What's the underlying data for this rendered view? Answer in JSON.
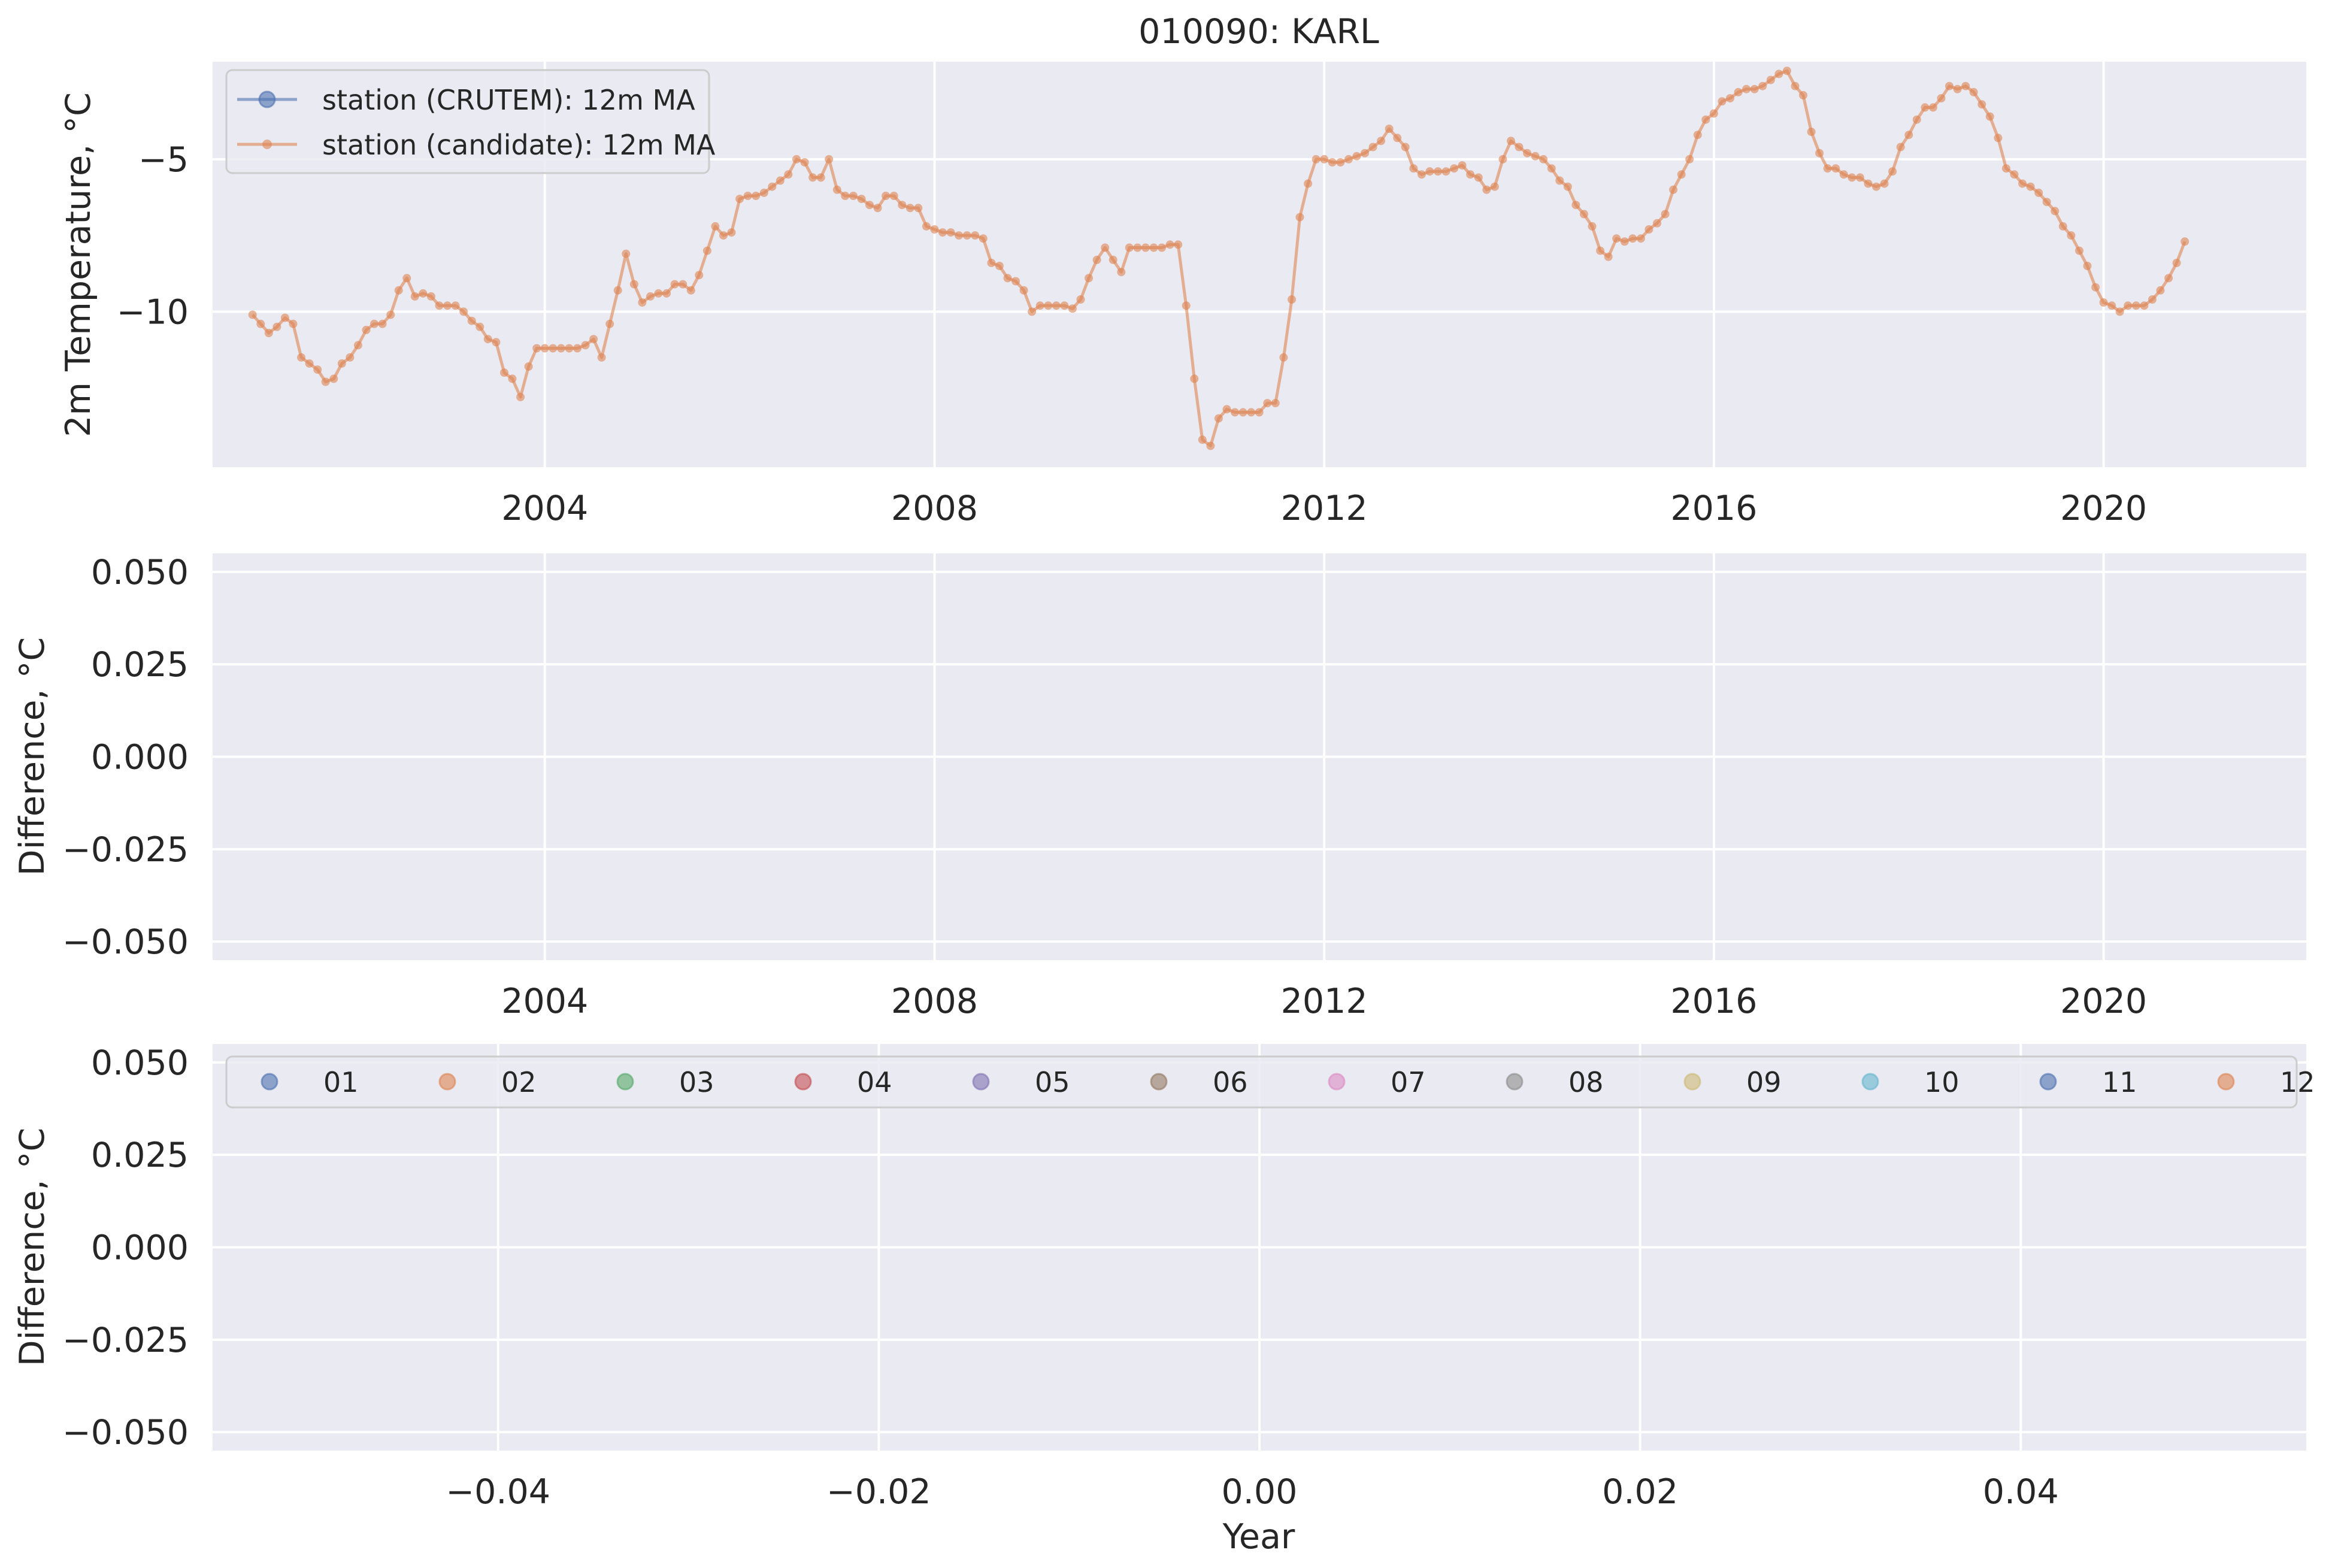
{
  "chart_data": [
    {
      "type": "line",
      "title": "010090: KARL",
      "xlabel": "",
      "ylabel": "2m Temperature, °C",
      "xlim": [
        2000.59,
        2022.08
      ],
      "ylim": [
        -15.1,
        -1.8
      ],
      "xticks": [
        2004,
        2008,
        2012,
        2016,
        2020
      ],
      "xtick_labels": [
        "2004",
        "2008",
        "2012",
        "2016",
        "2020"
      ],
      "yticks": [
        -5,
        -10
      ],
      "ytick_labels": [
        "−5",
        "−10"
      ],
      "grid": true,
      "legend_position": "upper-left",
      "series": [
        {
          "name": "station (CRUTEM): 12m MA",
          "color": "#4c72b0",
          "marker": "circle",
          "x": [],
          "y": []
        },
        {
          "name": "station (candidate): 12m MA",
          "color": "#dd8452",
          "marker": "circle-small",
          "x_start": 2001.0,
          "x_step": 0.0833333,
          "y": [
            -10.1,
            -10.4,
            -10.7,
            -10.5,
            -10.2,
            -10.4,
            -11.5,
            -11.7,
            -11.9,
            -12.3,
            -12.2,
            -11.7,
            -11.5,
            -11.1,
            -10.6,
            -10.4,
            -10.4,
            -10.1,
            -9.3,
            -8.9,
            -9.5,
            -9.4,
            -9.5,
            -9.8,
            -9.8,
            -9.8,
            -10.0,
            -10.3,
            -10.5,
            -10.9,
            -11.0,
            -12.0,
            -12.2,
            -12.8,
            -11.8,
            -11.2,
            -11.2,
            -11.2,
            -11.2,
            -11.2,
            -11.2,
            -11.1,
            -10.9,
            -11.5,
            -10.4,
            -9.3,
            -8.1,
            -9.1,
            -9.7,
            -9.5,
            -9.4,
            -9.4,
            -9.1,
            -9.1,
            -9.3,
            -8.8,
            -8.0,
            -7.2,
            -7.5,
            -7.4,
            -6.3,
            -6.2,
            -6.2,
            -6.1,
            -5.9,
            -5.7,
            -5.5,
            -5.0,
            -5.1,
            -5.6,
            -5.6,
            -5.0,
            -6.0,
            -6.2,
            -6.2,
            -6.3,
            -6.5,
            -6.6,
            -6.2,
            -6.2,
            -6.5,
            -6.6,
            -6.6,
            -7.2,
            -7.3,
            -7.4,
            -7.4,
            -7.5,
            -7.5,
            -7.5,
            -7.6,
            -8.4,
            -8.5,
            -8.9,
            -9.0,
            -9.3,
            -10.0,
            -9.8,
            -9.8,
            -9.8,
            -9.8,
            -9.9,
            -9.6,
            -8.9,
            -8.3,
            -7.9,
            -8.3,
            -8.7,
            -7.9,
            -7.9,
            -7.9,
            -7.9,
            -7.9,
            -7.8,
            -7.8,
            -9.8,
            -12.2,
            -14.2,
            -14.4,
            -13.5,
            -13.2,
            -13.3,
            -13.3,
            -13.3,
            -13.3,
            -13.0,
            -13.0,
            -11.5,
            -9.6,
            -6.9,
            -5.8,
            -5.0,
            -5.0,
            -5.1,
            -5.1,
            -5.0,
            -4.9,
            -4.8,
            -4.6,
            -4.4,
            -4.0,
            -4.3,
            -4.6,
            -5.3,
            -5.5,
            -5.4,
            -5.4,
            -5.4,
            -5.3,
            -5.2,
            -5.5,
            -5.6,
            -6.0,
            -5.9,
            -5.0,
            -4.4,
            -4.6,
            -4.8,
            -4.9,
            -5.0,
            -5.3,
            -5.7,
            -5.9,
            -6.5,
            -6.8,
            -7.2,
            -8.0,
            -8.2,
            -7.6,
            -7.7,
            -7.6,
            -7.6,
            -7.3,
            -7.1,
            -6.8,
            -6.0,
            -5.5,
            -5.0,
            -4.2,
            -3.7,
            -3.5,
            -3.1,
            -3.0,
            -2.8,
            -2.7,
            -2.7,
            -2.6,
            -2.4,
            -2.2,
            -2.1,
            -2.6,
            -2.9,
            -4.1,
            -4.8,
            -5.3,
            -5.3,
            -5.5,
            -5.6,
            -5.6,
            -5.8,
            -5.9,
            -5.8,
            -5.4,
            -4.6,
            -4.2,
            -3.7,
            -3.3,
            -3.3,
            -3.0,
            -2.6,
            -2.7,
            -2.6,
            -2.8,
            -3.2,
            -3.6,
            -4.3,
            -5.3,
            -5.5,
            -5.8,
            -5.9,
            -6.1,
            -6.4,
            -6.7,
            -7.2,
            -7.5,
            -8.0,
            -8.5,
            -9.2,
            -9.7,
            -9.8,
            -10.0,
            -9.8,
            -9.8,
            -9.8,
            -9.6,
            -9.3,
            -8.9,
            -8.4,
            -7.7
          ]
        }
      ]
    },
    {
      "type": "line",
      "title": "",
      "xlabel": "",
      "ylabel": "Difference, °C",
      "xlim": [
        2000.59,
        2022.08
      ],
      "ylim": [
        -0.055,
        0.055
      ],
      "xticks": [
        2004,
        2008,
        2012,
        2016,
        2020
      ],
      "xtick_labels": [
        "2004",
        "2008",
        "2012",
        "2016",
        "2020"
      ],
      "yticks": [
        0.05,
        0.025,
        0.0,
        -0.025,
        -0.05
      ],
      "ytick_labels": [
        "0.050",
        "0.025",
        "0.000",
        "−0.025",
        "−0.050"
      ],
      "grid": true,
      "series": []
    },
    {
      "type": "scatter",
      "title": "",
      "xlabel": "Year",
      "ylabel": "Difference, °C",
      "xlim": [
        -0.055,
        0.055
      ],
      "ylim": [
        -0.055,
        0.055
      ],
      "xticks": [
        -0.04,
        -0.02,
        0.0,
        0.02,
        0.04
      ],
      "xtick_labels": [
        "−0.04",
        "−0.02",
        "0.00",
        "0.02",
        "0.04"
      ],
      "yticks": [
        0.05,
        0.025,
        0.0,
        -0.025,
        -0.05
      ],
      "ytick_labels": [
        "0.050",
        "0.025",
        "0.000",
        "−0.025",
        "−0.050"
      ],
      "grid": true,
      "legend_position": "upper-center",
      "series": [
        {
          "name": "01",
          "color": "#4c72b0",
          "x": [],
          "y": []
        },
        {
          "name": "02",
          "color": "#dd8452",
          "x": [],
          "y": []
        },
        {
          "name": "03",
          "color": "#55a868",
          "x": [],
          "y": []
        },
        {
          "name": "04",
          "color": "#c44e52",
          "x": [],
          "y": []
        },
        {
          "name": "05",
          "color": "#8172b3",
          "x": [],
          "y": []
        },
        {
          "name": "06",
          "color": "#937860",
          "x": [],
          "y": []
        },
        {
          "name": "07",
          "color": "#da8bc3",
          "x": [],
          "y": []
        },
        {
          "name": "08",
          "color": "#8c8c8c",
          "x": [],
          "y": []
        },
        {
          "name": "09",
          "color": "#ccb974",
          "x": [],
          "y": []
        },
        {
          "name": "10",
          "color": "#64b5cd",
          "x": [],
          "y": []
        },
        {
          "name": "11",
          "color": "#4c72b0",
          "x": [],
          "y": []
        },
        {
          "name": "12",
          "color": "#dd8452",
          "x": [],
          "y": []
        }
      ]
    }
  ]
}
